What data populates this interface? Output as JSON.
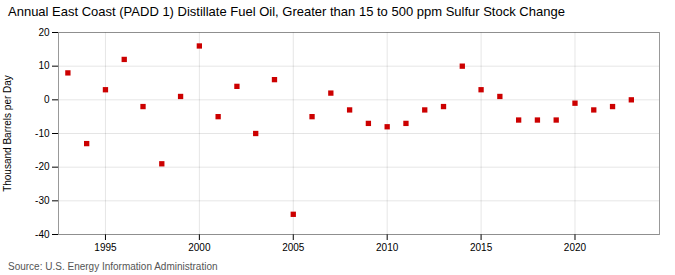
{
  "chart_data": {
    "type": "scatter",
    "title": "Annual East Coast (PADD 1) Distillate Fuel Oil, Greater than 15 to 500 ppm Sulfur Stock Change",
    "ylabel": "Thousand Barrels per Day",
    "source": "Source: U.S. Energy Information Administration",
    "x": [
      1993,
      1994,
      1995,
      1996,
      1997,
      1998,
      1999,
      2000,
      2001,
      2002,
      2003,
      2004,
      2005,
      2006,
      2007,
      2008,
      2009,
      2010,
      2011,
      2012,
      2013,
      2014,
      2015,
      2016,
      2017,
      2018,
      2019,
      2020,
      2021,
      2022,
      2023
    ],
    "values": [
      8,
      -13,
      3,
      12,
      -2,
      -19,
      1,
      16,
      -5,
      4,
      -10,
      6,
      -34,
      -5,
      2,
      -3,
      -7,
      -8,
      -7,
      -3,
      -2,
      10,
      3,
      1,
      -6,
      -6,
      -6,
      -1,
      -3,
      -2,
      0
    ],
    "color": "#cc0000",
    "marker": "square",
    "xlim": [
      1992.5,
      2024.5
    ],
    "xticks": [
      1995,
      2000,
      2005,
      2010,
      2015,
      2020
    ],
    "ylim": [
      -40,
      20
    ],
    "yticks": [
      -40,
      -30,
      -20,
      -10,
      0,
      10,
      20
    ],
    "grid": true
  }
}
